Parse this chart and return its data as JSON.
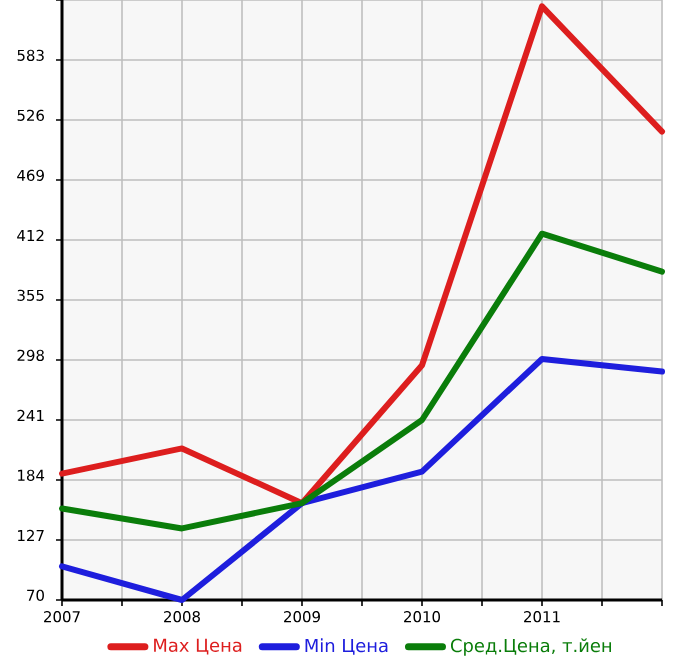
{
  "chart_data": {
    "type": "line",
    "x": [
      2007,
      2008,
      2009,
      2010,
      2011,
      2012
    ],
    "series": [
      {
        "name": "Max Цена",
        "color": "#dd1e1e",
        "values": [
          190,
          214,
          162,
          293,
          634,
          515
        ]
      },
      {
        "name": "Min Цена",
        "color": "#1e1edd",
        "values": [
          102,
          70,
          162,
          192,
          299,
          287
        ]
      },
      {
        "name": "Сред.Цена, т.йен",
        "color": "#0a7d0a",
        "values": [
          157,
          138,
          162,
          241,
          418,
          382
        ]
      }
    ],
    "xlim": [
      2007,
      2012
    ],
    "xticks": [
      2007,
      {
        "value": 2007.5,
        "label": null
      },
      2008,
      {
        "value": 2008.5,
        "label": null
      },
      2009,
      {
        "value": 2009.5,
        "label": null
      },
      2010,
      {
        "value": 2010.5,
        "label": null
      },
      2011,
      {
        "value": 2011.5,
        "label": null
      },
      {
        "value": 2012,
        "label": null
      }
    ],
    "ylim": [
      70,
      640
    ],
    "yticks": [
      70,
      127,
      184,
      241,
      298,
      355,
      412,
      469,
      526,
      583,
      {
        "value": 640,
        "label": null
      }
    ],
    "grid": true,
    "legend": "bottom",
    "marker": "none",
    "line_style": "solid"
  }
}
